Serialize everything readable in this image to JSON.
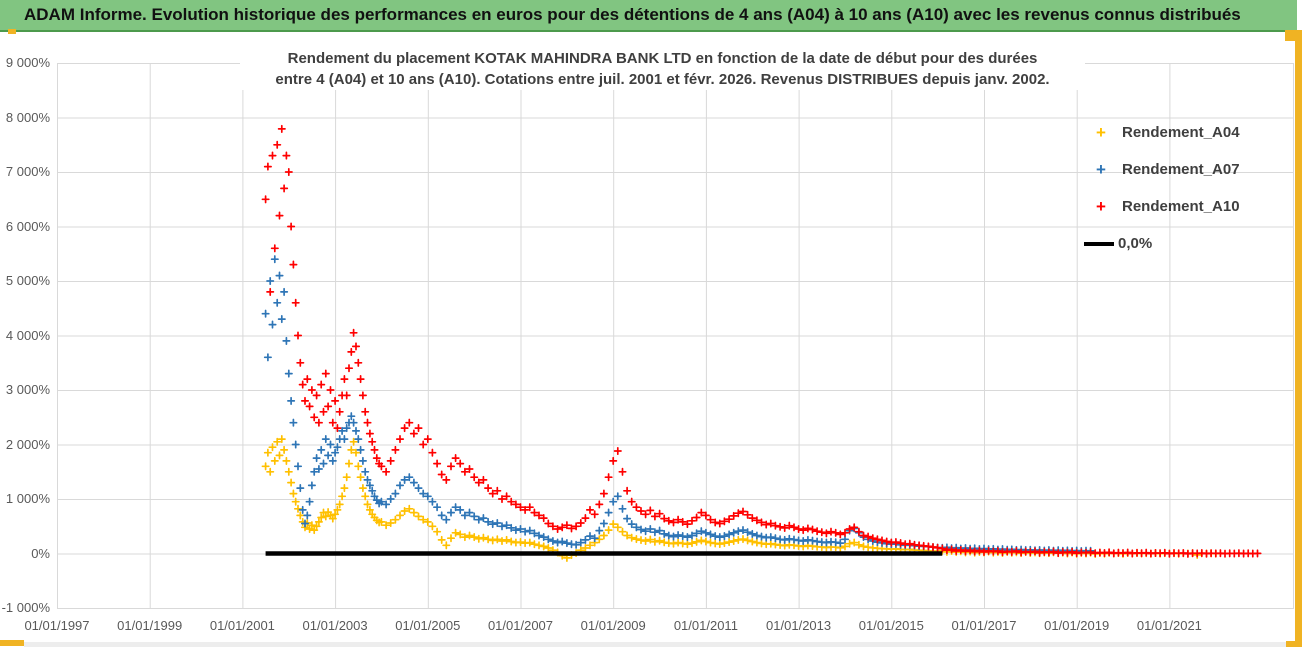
{
  "banner": {
    "title": "ADAM Informe. Evolution historique des performances en euros pour des détentions de 4 ans (A04) à 10 ans (A10) avec les revenus connus distribués"
  },
  "chart": {
    "title_line1": "Rendement du placement KOTAK MAHINDRA BANK LTD en fonction de la date de début pour des durées",
    "title_line2": "entre 4 (A04) et 10 ans (A10).  Cotations entre juil. 2001 et févr. 2026. Revenus DISTRIBUES depuis janv. 2002.",
    "y_axis": {
      "labels": [
        "9 000%",
        "8 000%",
        "7 000%",
        "6 000%",
        "5 000%",
        "4 000%",
        "3 000%",
        "2 000%",
        "1 000%",
        "0%",
        "-1 000%"
      ],
      "values": [
        9000,
        8000,
        7000,
        6000,
        5000,
        4000,
        3000,
        2000,
        1000,
        0,
        -1000
      ]
    },
    "x_axis": {
      "labels": [
        "01/01/1997",
        "01/01/1999",
        "01/01/2001",
        "01/01/2003",
        "01/01/2005",
        "01/01/2007",
        "01/01/2009",
        "01/01/2011",
        "01/01/2013",
        "01/01/2015",
        "01/01/2017",
        "01/01/2019",
        "01/01/2021"
      ],
      "years": [
        1997,
        1999,
        2001,
        2003,
        2005,
        2007,
        2009,
        2011,
        2013,
        2015,
        2017,
        2019,
        2021
      ]
    },
    "legend": [
      {
        "label": "Rendement_A04",
        "color": "#FFC000",
        "marker": "plus"
      },
      {
        "label": "Rendement_A07",
        "color": "#2E75B6",
        "marker": "plus"
      },
      {
        "label": "Rendement_A10",
        "color": "#FF0000",
        "marker": "plus"
      },
      {
        "label": "0,0%",
        "color": "#000000",
        "marker": "line"
      }
    ]
  },
  "colors": {
    "banner_green": "#81C581",
    "banner_border": "#4C9A4C",
    "gold_accent": "#F0B323",
    "grid": "#D9D9D9",
    "axis_text": "#595959",
    "title_text": "#3F3F3F",
    "series_a04": "#FFC000",
    "series_a07": "#2E75B6",
    "series_a10": "#FF0000",
    "zero_line": "#000000"
  },
  "chart_data": {
    "type": "scatter",
    "x_unit": "decimal_year_start_date",
    "y_unit": "percent",
    "xlim": [
      1997.0,
      2023.7
    ],
    "ylim": [
      -1000,
      9000
    ],
    "grid": true,
    "legend_position": "right",
    "series": [
      {
        "name": "Rendement_A04",
        "color": "#FFC000",
        "marker": "plus",
        "segments": [
          {
            "x0": 2001.5,
            "dx": 0.05,
            "values": [
              1600,
              1850,
              1500,
              1950,
              1700,
              2050,
              1800,
              2100,
              1900,
              1700,
              1500,
              1300,
              1100,
              950,
              820,
              700,
              580,
              480,
              560,
              450,
              520,
              430,
              500,
              580,
              660,
              750,
              680,
              760,
              700,
              640,
              720,
              800,
              900,
              1050,
              1200,
              1400,
              1650,
              1900,
              2050,
              1850,
              1600,
              1400,
              1200,
              1050,
              900,
              800,
              720,
              660,
              610,
              570
            ]
          },
          {
            "x0": 2004.0,
            "dx": 0.1,
            "values": [
              580,
              520,
              560,
              620,
              700,
              780,
              820,
              750,
              680,
              620,
              580,
              500,
              400,
              250,
              150,
              280,
              380,
              350,
              300,
              330,
              300,
              270,
              290,
              260,
              240,
              260,
              230,
              250,
              220,
              200,
              210,
              190,
              200,
              170,
              150,
              130,
              100,
              60,
              20,
              -40,
              -80,
              -30,
              10,
              60,
              100,
              150,
              200,
              260,
              330,
              430,
              540,
              480,
              400,
              330,
              290,
              265,
              245,
              230,
              255,
              215,
              235,
              205,
              190,
              180,
              200,
              185,
              170,
              190,
              215,
              240,
              220,
              200,
              185,
              175,
              190,
              210,
              230,
              250,
              265,
              240,
              220,
              200,
              185,
              170,
              180,
              165,
              155,
              145,
              160,
              150,
              140,
              130,
              145,
              135,
              125,
              120,
              110,
              120,
              115,
              105,
              130,
              180,
              200,
              160,
              130,
              115,
              105,
              95,
              90,
              85,
              80,
              85,
              75,
              70,
              75,
              65,
              60,
              55,
              50,
              45,
              40,
              50,
              30,
              45,
              25,
              40,
              20,
              35,
              15,
              30,
              20,
              35,
              15,
              25,
              10,
              30,
              12,
              22,
              8,
              25,
              10,
              20,
              5,
              18,
              8,
              22,
              5,
              15,
              0,
              18,
              -5,
              12,
              0,
              15,
              -8,
              10,
              -3,
              12,
              0,
              8,
              -5,
              10,
              -2,
              8,
              0,
              6,
              -4,
              8,
              -2,
              5,
              0,
              6,
              -3,
              4,
              -2,
              5,
              -25,
              3,
              0,
              4,
              -2
            ]
          }
        ]
      },
      {
        "name": "Rendement_A07",
        "color": "#2E75B6",
        "marker": "plus",
        "segments": [
          {
            "x0": 2001.5,
            "dx": 0.05,
            "values": [
              4400,
              3600,
              5000,
              4200,
              5400,
              4600,
              5100,
              4300,
              4800,
              3900,
              3300,
              2800,
              2400,
              2000,
              1600,
              1200,
              800,
              550,
              700,
              950,
              1250,
              1500,
              1750,
              1550,
              1900,
              1650,
              2100,
              1800,
              2000,
              1700,
              1850,
              1950,
              2100,
              2250,
              2100,
              2300,
              2400,
              2520,
              2400,
              2250,
              2100,
              1900,
              1700,
              1500,
              1350,
              1250,
              1150,
              1050,
              980,
              920
            ]
          },
          {
            "x0": 2004.0,
            "dx": 0.1,
            "values": [
              950,
              900,
              1000,
              1100,
              1250,
              1350,
              1400,
              1300,
              1200,
              1100,
              1050,
              950,
              850,
              700,
              620,
              750,
              850,
              800,
              700,
              750,
              680,
              620,
              650,
              580,
              540,
              560,
              500,
              520,
              470,
              430,
              450,
              400,
              420,
              370,
              330,
              300,
              260,
              230,
              200,
              220,
              190,
              170,
              160,
              200,
              250,
              320,
              280,
              420,
              550,
              750,
              950,
              1050,
              820,
              640,
              540,
              480,
              440,
              410,
              450,
              390,
              420,
              360,
              330,
              310,
              340,
              320,
              300,
              330,
              370,
              410,
              380,
              350,
              320,
              300,
              320,
              350,
              380,
              410,
              430,
              390,
              360,
              330,
              310,
              290,
              300,
              280,
              260,
              250,
              270,
              255,
              240,
              230,
              250,
              235,
              220,
              210,
              200,
              215,
              205,
              190,
              260,
              420,
              460,
              380,
              300,
              260,
              230,
              210,
              195,
              180,
              170,
              175,
              160,
              150,
              155,
              145,
              135,
              130,
              125,
              115,
              110,
              105,
              112,
              98,
              106,
              92,
              100,
              88,
              95,
              82,
              90,
              78,
              85,
              72,
              80,
              70,
              76,
              66,
              72,
              62,
              68,
              58,
              65,
              55,
              62,
              52,
              60,
              50,
              56,
              48,
              54,
              46,
              52,
              50
            ]
          }
        ]
      },
      {
        "name": "Rendement_A10",
        "color": "#FF0000",
        "marker": "plus",
        "segments": [
          {
            "x0": 2001.5,
            "dx": 0.05,
            "values": [
              6500,
              7100,
              4800,
              7300,
              5600,
              7500,
              6200,
              7790,
              6700,
              7300,
              7000,
              6000,
              5300,
              4600,
              4000,
              3500,
              3100,
              2800,
              3200,
              2700,
              3000,
              2500,
              2900,
              2400,
              3100,
              2600,
              3300,
              2700,
              3000,
              2400,
              2800,
              2300,
              2600,
              2900,
              3200,
              2900,
              3400,
              3700,
              4050,
              3800,
              3500,
              3200,
              2900,
              2600,
              2400,
              2200,
              2050,
              1900,
              1750,
              1650
            ]
          },
          {
            "x0": 2004.0,
            "dx": 0.1,
            "values": [
              1600,
              1500,
              1700,
              1900,
              2100,
              2300,
              2400,
              2200,
              2300,
              2000,
              2100,
              1850,
              1650,
              1450,
              1350,
              1600,
              1750,
              1650,
              1500,
              1550,
              1400,
              1300,
              1350,
              1200,
              1100,
              1150,
              1000,
              1050,
              950,
              900,
              850,
              800,
              850,
              750,
              700,
              650,
              550,
              500,
              450,
              480,
              520,
              460,
              500,
              560,
              650,
              800,
              720,
              900,
              1100,
              1400,
              1700,
              1880,
              1500,
              1150,
              950,
              850,
              780,
              720,
              790,
              680,
              730,
              640,
              600,
              570,
              620,
              580,
              540,
              600,
              660,
              750,
              700,
              620,
              570,
              550,
              590,
              630,
              690,
              740,
              770,
              710,
              650,
              610,
              570,
              530,
              550,
              510,
              490,
              470,
              510,
              480,
              450,
              430,
              460,
              440,
              410,
              390,
              370,
              400,
              380,
              350,
              380,
              450,
              480,
              400,
              330,
              310,
              280,
              260,
              240,
              220,
              200,
              210,
              190,
              170,
              180,
              160,
              150,
              140,
              130,
              120,
              105,
              90,
              60,
              75,
              45,
              65,
              40,
              60,
              35,
              55,
              30,
              50,
              35,
              45,
              25,
              40,
              30,
              45,
              20,
              35,
              25,
              40,
              15,
              30,
              20,
              35,
              10,
              25,
              15,
              30,
              8,
              20,
              12,
              25,
              5,
              18,
              10,
              22,
              4,
              15,
              8,
              18,
              2,
              12,
              6,
              15,
              0,
              10,
              5,
              12,
              -3,
              8,
              3,
              10,
              -5,
              6,
              2,
              8,
              -4,
              5,
              1,
              6,
              -3,
              4,
              0,
              5,
              -2,
              3,
              -1,
              2
            ]
          }
        ]
      },
      {
        "name": "0,0%",
        "color": "#000000",
        "type": "line",
        "points": [
          [
            2001.5,
            0
          ],
          [
            2016.1,
            0
          ]
        ]
      }
    ]
  }
}
